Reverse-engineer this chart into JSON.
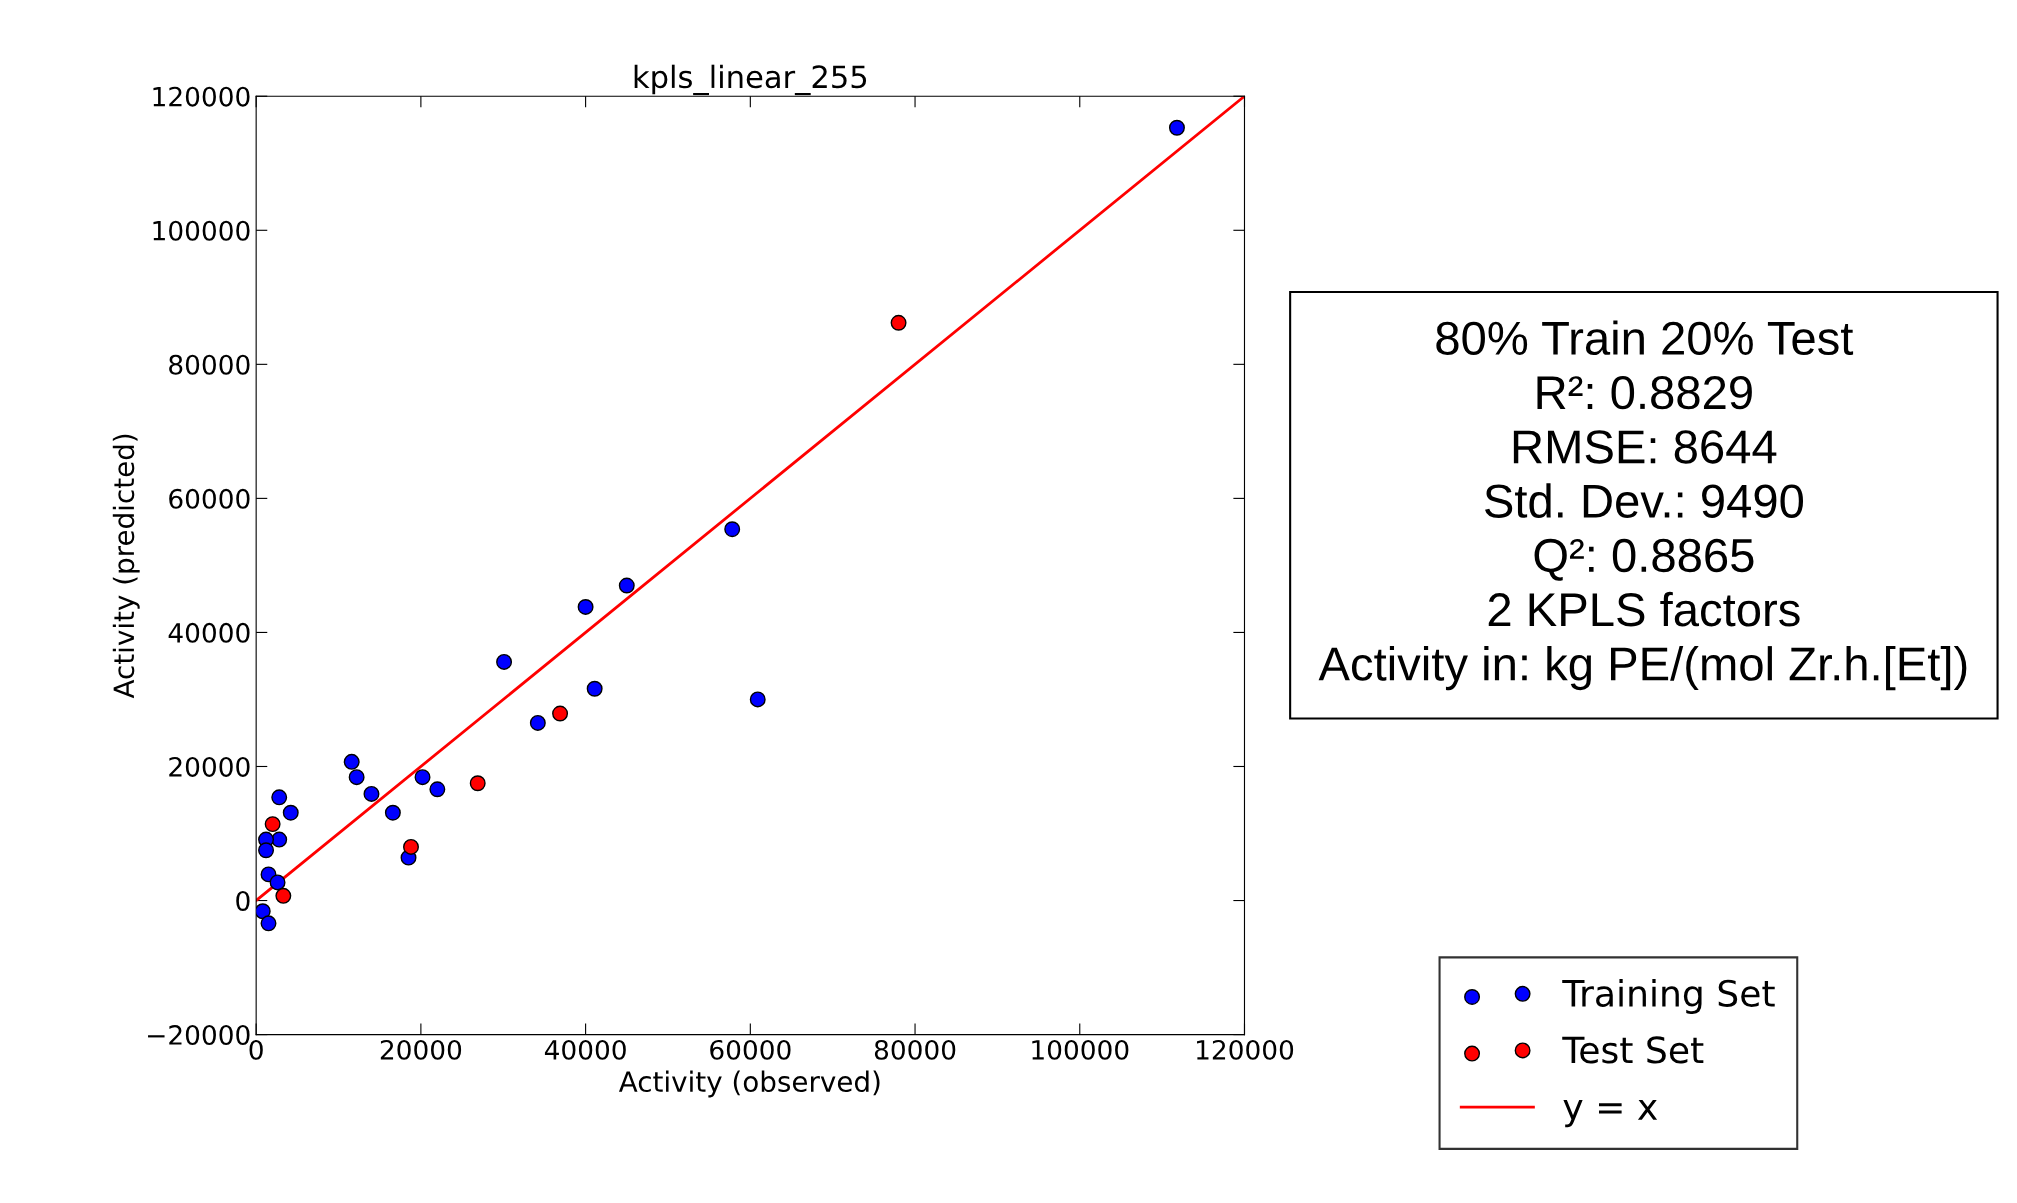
{
  "chart_data": {
    "type": "scatter",
    "title": "kpls_linear_255",
    "xlabel": "Activity (observed)",
    "ylabel": "Activity (predicted)",
    "series": [
      {
        "name": "Training Set",
        "color": "#0000ff",
        "marker": "circle",
        "x": [
          111800,
          57800,
          60900,
          45000,
          40000,
          41100,
          34200,
          30100,
          22000,
          20200,
          18500,
          16600,
          14000,
          12200,
          11600,
          4200,
          2800,
          2800,
          1200,
          1200,
          1500,
          2600,
          800,
          1500
        ],
        "values": [
          115300,
          55400,
          30000,
          47000,
          43800,
          31600,
          26500,
          35600,
          16600,
          18400,
          6400,
          13100,
          15900,
          18400,
          20700,
          13100,
          15400,
          9100,
          9100,
          7500,
          3900,
          2700,
          -1600,
          -3400
        ]
      },
      {
        "name": "Test Set",
        "color": "#ff0000",
        "marker": "circle",
        "x": [
          78000,
          36900,
          26900,
          18800,
          2000,
          3300
        ],
        "values": [
          86200,
          27900,
          17500,
          8000,
          11400,
          700
        ]
      },
      {
        "name": "y = x",
        "type": "line",
        "color": "#ff0000",
        "marker": "none",
        "x": [
          0,
          120000
        ],
        "values": [
          0,
          120000
        ]
      }
    ],
    "xlim": [
      0,
      120000
    ],
    "ylim": [
      -20000,
      120000
    ],
    "xticks": [
      0,
      20000,
      40000,
      60000,
      80000,
      100000,
      120000
    ],
    "yticks": [
      {
        "value": -20000,
        "label": "−20000"
      },
      0,
      20000,
      40000,
      60000,
      80000,
      100000,
      120000
    ],
    "annotations": [
      "80% Train 20% Test",
      "R²: 0.8829",
      "RMSE: 8644",
      "Std. Dev.: 9490",
      "Q²: 0.8865",
      "2 KPLS factors",
      "Activity in: kg PE/(mol Zr.h.[Et])"
    ],
    "legend": "bottom right",
    "grid": false
  }
}
